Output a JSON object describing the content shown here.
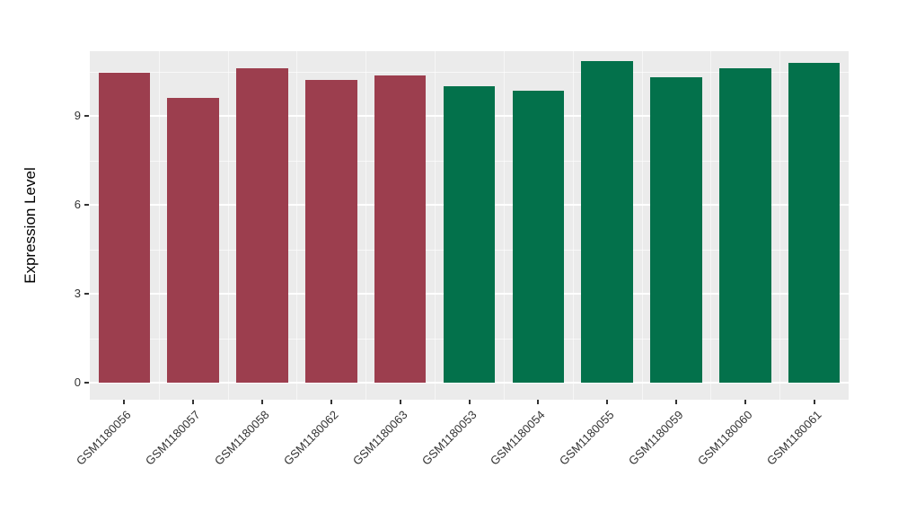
{
  "chart_data": {
    "type": "bar",
    "title": "",
    "xlabel": "",
    "ylabel": "Expression Level",
    "categories": [
      "GSM1180056",
      "GSM1180057",
      "GSM1180058",
      "GSM1180062",
      "GSM1180063",
      "GSM1180053",
      "GSM1180054",
      "GSM1180055",
      "GSM1180059",
      "GSM1180060",
      "GSM1180061"
    ],
    "values": [
      10.45,
      9.6,
      10.6,
      10.2,
      10.35,
      10.0,
      9.85,
      10.85,
      10.3,
      10.6,
      10.8
    ],
    "colors": [
      "#9C3E4E",
      "#9C3E4E",
      "#9C3E4E",
      "#9C3E4E",
      "#9C3E4E",
      "#03714B",
      "#03714B",
      "#03714B",
      "#03714B",
      "#03714B",
      "#03714B"
    ],
    "group_colors": {
      "left_group": "#9C3E4E",
      "right_group": "#03714B"
    },
    "ylim": [
      0,
      11.2
    ],
    "yticks": [
      0,
      3,
      6,
      9
    ],
    "grid": true,
    "legend_position": "none",
    "panel_background": "#EBEBEB",
    "grid_color": "#FFFFFF"
  }
}
